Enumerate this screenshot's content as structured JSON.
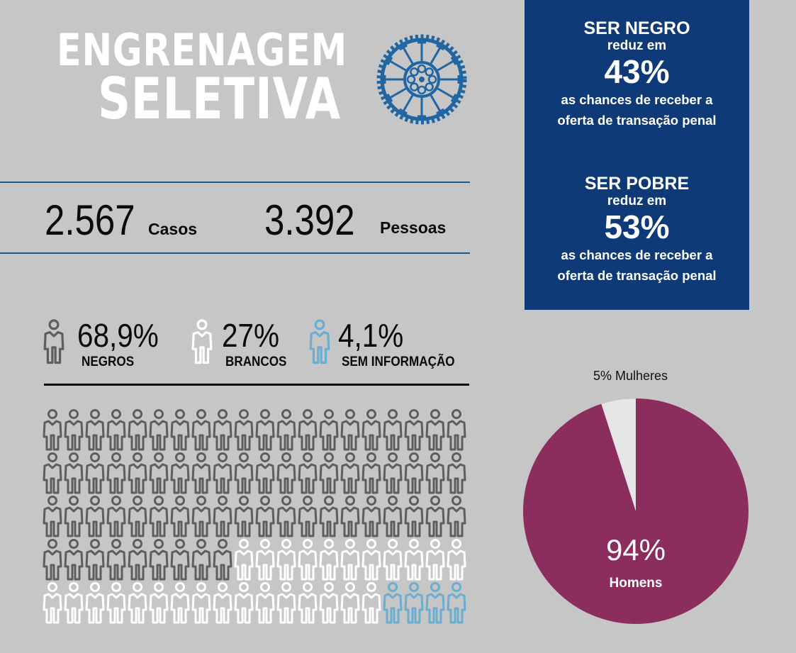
{
  "title": {
    "line1": "ENGRENAGEM",
    "line2": "SELETIVA",
    "logo_icon": "bicycle-chainring-gear-icon",
    "logo_color": "#1f66a3",
    "text_color": "#ffffff"
  },
  "counts": {
    "cases_value": "2.567",
    "cases_label": "Casos",
    "people_value": "3.392",
    "people_label": "Pessoas",
    "rule_color": "#1d5a8c"
  },
  "race": {
    "items": [
      {
        "pct": "68,9%",
        "label": "NEGROS",
        "icon": "person-icon",
        "color": "#5e5e5e"
      },
      {
        "pct": "27%",
        "label": "BRANCOS",
        "icon": "person-icon",
        "color": "#ffffff"
      },
      {
        "pct": "4,1%",
        "label": "SEM INFORMAÇÃO",
        "icon": "person-icon",
        "color": "#6aaed0"
      }
    ],
    "grid": {
      "columns": 20,
      "rows": 5,
      "negros": 69,
      "brancos": 27,
      "sem_informacao": 4
    }
  },
  "info_box": {
    "background": "#0e3a78",
    "blocks": [
      {
        "head": "SER NEGRO",
        "sub": "reduz em",
        "pct": "43%",
        "line1": "as chances de receber a",
        "line2": "oferta de transação penal"
      },
      {
        "head": "SER POBRE",
        "sub": "reduz em",
        "pct": "53%",
        "line1": "as chances de receber a",
        "line2": "oferta de transação penal"
      }
    ]
  },
  "gender": {
    "women_label": "5% Mulheres",
    "men_pct": "94%",
    "men_label": "Homens",
    "men_color": "#8b2e5e",
    "women_color": "#e6e6e6"
  },
  "chart_data": [
    {
      "type": "table",
      "title": "ENGRENAGEM SELETIVA",
      "categories": [
        "Casos",
        "Pessoas"
      ],
      "values": [
        2567,
        3392
      ]
    },
    {
      "type": "bar",
      "title": "Raça/cor (pictograma 100 pessoas)",
      "categories": [
        "NEGROS",
        "BRANCOS",
        "SEM INFORMAÇÃO"
      ],
      "values": [
        68.9,
        27,
        4.1
      ],
      "unit": "%",
      "pictogram_counts": [
        69,
        27,
        4
      ],
      "colors": [
        "#5e5e5e",
        "#ffffff",
        "#6aaed0"
      ]
    },
    {
      "type": "table",
      "title": "Redução nas chances de receber a oferta de transação penal",
      "categories": [
        "SER NEGRO",
        "SER POBRE"
      ],
      "values": [
        43,
        53
      ],
      "unit": "%"
    },
    {
      "type": "pie",
      "title": "Gênero",
      "categories": [
        "Homens",
        "Mulheres"
      ],
      "values": [
        94,
        5
      ],
      "unit": "%",
      "colors": [
        "#8b2e5e",
        "#e6e6e6"
      ],
      "annotations": [
        "94% Homens",
        "5% Mulheres"
      ]
    }
  ]
}
